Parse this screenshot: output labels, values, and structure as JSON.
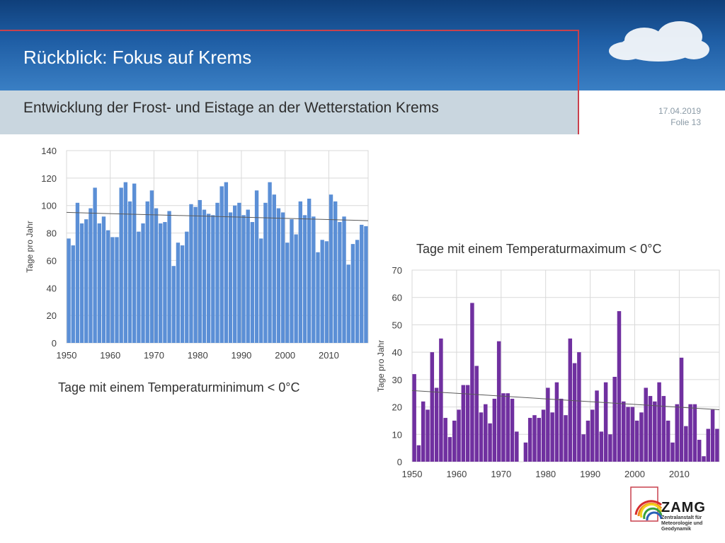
{
  "slide": {
    "title": "Rückblick: Fokus auf Krems",
    "subtitle": "Entwicklung der Frost- und Eistage an der Wetterstation Krems",
    "date": "17.04.2019",
    "slide_number": "Folie 13"
  },
  "logo": {
    "name": "ZAMG",
    "subtitle_line1": "Zentralanstalt für",
    "subtitle_line2": "Meteorologie und",
    "subtitle_line3": "Geodynamik"
  },
  "chart_data": [
    {
      "type": "bar",
      "title": "Tage mit einem Temperaturminimum < 0°C",
      "ylabel": "Tage pro Jahr",
      "xlabel": "",
      "ylim": [
        0,
        140
      ],
      "yticks": [
        0,
        20,
        40,
        60,
        80,
        100,
        120,
        140
      ],
      "xticks": [
        1950,
        1960,
        1970,
        1980,
        1990,
        2000,
        2010
      ],
      "x_start": 1950,
      "x_end": 2018,
      "grid": true,
      "color": "#5b8fd6",
      "trendline": {
        "start": [
          1950,
          95
        ],
        "end": [
          2018,
          89
        ]
      },
      "values": [
        76,
        71,
        102,
        87,
        90,
        98,
        113,
        87,
        92,
        82,
        77,
        77,
        113,
        117,
        103,
        116,
        81,
        87,
        103,
        111,
        98,
        87,
        88,
        96,
        56,
        73,
        71,
        81,
        101,
        99,
        104,
        97,
        94,
        93,
        102,
        114,
        117,
        95,
        100,
        102,
        93,
        97,
        88,
        111,
        76,
        102,
        117,
        108,
        98,
        95,
        73,
        90,
        79,
        103,
        93,
        105,
        92,
        66,
        75,
        74,
        108,
        103,
        88,
        92,
        57,
        72,
        75,
        86,
        85
      ]
    },
    {
      "type": "bar",
      "title": "Tage mit einem Temperaturmaximum < 0°C",
      "ylabel": "Tage pro Jahr",
      "xlabel": "",
      "ylim": [
        0,
        70
      ],
      "yticks": [
        0,
        10,
        20,
        30,
        40,
        50,
        60,
        70
      ],
      "xticks": [
        1950,
        1960,
        1970,
        1980,
        1990,
        2000,
        2010
      ],
      "x_start": 1950,
      "x_end": 2018,
      "grid": true,
      "color": "#7030a0",
      "trendline": {
        "start": [
          1950,
          26
        ],
        "end": [
          2018,
          19
        ]
      },
      "values": [
        32,
        6,
        22,
        19,
        40,
        27,
        45,
        16,
        9,
        15,
        19,
        28,
        28,
        58,
        35,
        18,
        21,
        14,
        23,
        44,
        25,
        25,
        23,
        11,
        0,
        7,
        16,
        17,
        16,
        19,
        27,
        18,
        29,
        23,
        17,
        45,
        36,
        40,
        10,
        15,
        19,
        26,
        11,
        29,
        10,
        31,
        55,
        22,
        20,
        20,
        15,
        18,
        27,
        24,
        22,
        29,
        24,
        15,
        7,
        21,
        38,
        13,
        21,
        21,
        8,
        2,
        12,
        19,
        12
      ]
    }
  ]
}
